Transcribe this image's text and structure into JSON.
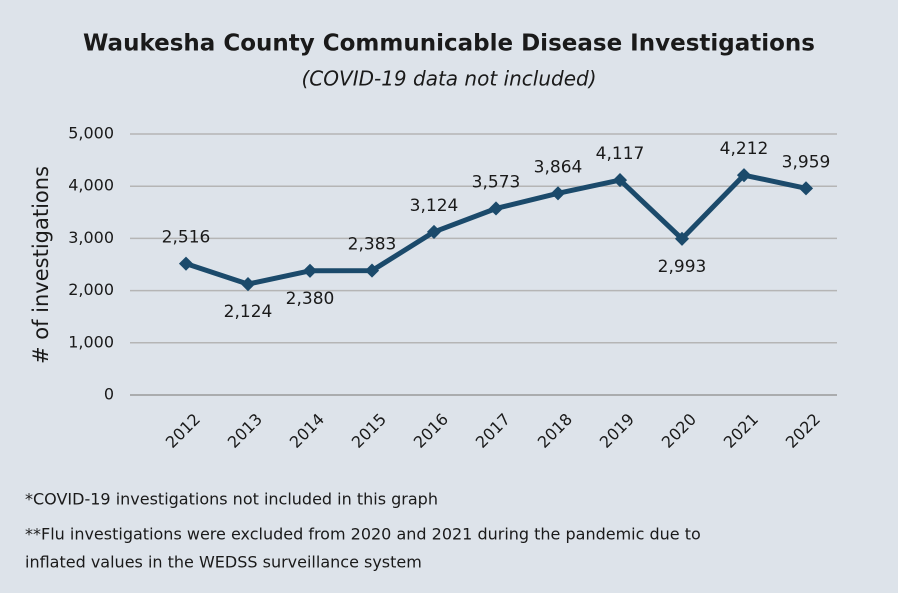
{
  "chart_data": {
    "type": "line",
    "title": "Waukesha County Communicable Disease Investigations",
    "subtitle": "(COVID-19 data not included)",
    "ylabel": "# of investigations",
    "categories": [
      "2012",
      "2013",
      "2014",
      "2015",
      "2016",
      "2017",
      "2018",
      "2019",
      "2020",
      "2021",
      "2022"
    ],
    "series": [
      {
        "name": "Investigations",
        "color": "#1b4a6b",
        "values": [
          2516,
          2124,
          2380,
          2383,
          3124,
          3573,
          3864,
          4117,
          2993,
          4212,
          3959
        ],
        "value_labels": [
          "2,516",
          "2,124",
          "2,380",
          "2,383",
          "3,124",
          "3,573",
          "3,864",
          "4,117",
          "2,993",
          "4,212",
          "3,959"
        ]
      }
    ],
    "ylim": [
      0,
      5000
    ],
    "yticks": [
      0,
      {
        "value": 1000,
        "label": "1,000"
      },
      {
        "value": 2000,
        "label": "2,000"
      },
      {
        "value": 3000,
        "label": "3,000"
      },
      {
        "value": 4000,
        "label": "4,000"
      },
      {
        "value": 5000,
        "label": "5,000"
      }
    ],
    "grid": true,
    "notes": [
      "*COVID-19 investigations not included in this graph",
      "**Flu investigations were excluded from 2020 and 2021 during the pandemic due to",
      "inflated values in the WEDSS surveillance system"
    ]
  }
}
